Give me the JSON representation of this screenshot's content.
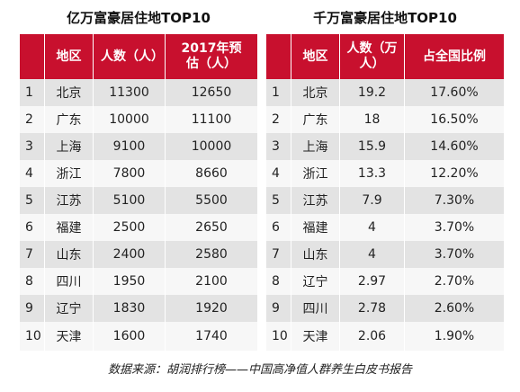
{
  "left_table": {
    "title": "亿万富豪居住地TOP10",
    "headers": [
      "",
      "地区",
      "人数（人）",
      "2017年预估（人）"
    ],
    "rows": [
      [
        "1",
        "北京",
        "11300",
        "12650"
      ],
      [
        "2",
        "广东",
        "10000",
        "11100"
      ],
      [
        "3",
        "上海",
        "9100",
        "10000"
      ],
      [
        "4",
        "浙江",
        "7800",
        "8660"
      ],
      [
        "5",
        "江苏",
        "5100",
        "5500"
      ],
      [
        "6",
        "福建",
        "2500",
        "2650"
      ],
      [
        "7",
        "山东",
        "2400",
        "2580"
      ],
      [
        "8",
        "四川",
        "1950",
        "2100"
      ],
      [
        "9",
        "辽宁",
        "1830",
        "1920"
      ],
      [
        "10",
        "天津",
        "1600",
        "1740"
      ]
    ]
  },
  "right_table": {
    "title": "千万富豪居住地TOP10",
    "headers": [
      "",
      "地区",
      "人数（万人）",
      "占全国比例"
    ],
    "rows": [
      [
        "1",
        "北京",
        "19.2",
        "17.60%"
      ],
      [
        "2",
        "广东",
        "18",
        "16.50%"
      ],
      [
        "3",
        "上海",
        "15.9",
        "14.60%"
      ],
      [
        "4",
        "浙江",
        "13.3",
        "12.20%"
      ],
      [
        "5",
        "江苏",
        "7.9",
        "7.30%"
      ],
      [
        "6",
        "福建",
        "4",
        "3.70%"
      ],
      [
        "7",
        "山东",
        "4",
        "3.70%"
      ],
      [
        "8",
        "辽宁",
        "2.97",
        "2.70%"
      ],
      [
        "9",
        "四川",
        "2.78",
        "2.60%"
      ],
      [
        "10",
        "天津",
        "2.06",
        "1.90%"
      ]
    ]
  },
  "source": "数据来源：胡润排行榜——中国高净值人群养生白皮书报告",
  "colors": {
    "header_bg": "#c8102e",
    "row_odd": "#e3e3e3",
    "row_even": "#f7f7f7"
  }
}
